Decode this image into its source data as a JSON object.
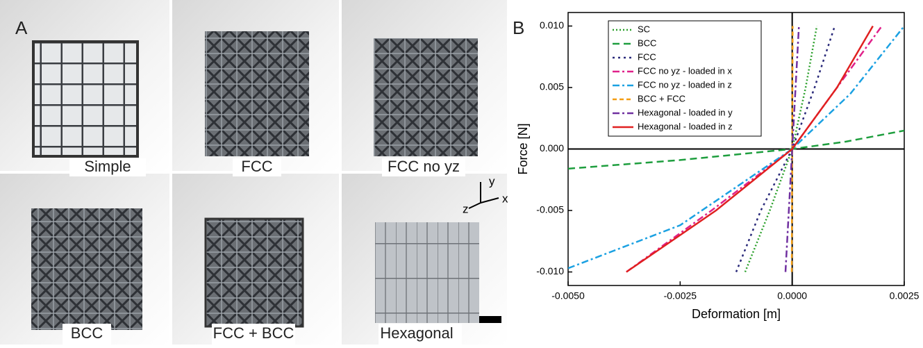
{
  "panel_a": {
    "label": "A",
    "tiles": [
      "Simple",
      "FCC",
      "FCC no yz",
      "BCC",
      "FCC + BCC",
      "Hexagonal"
    ],
    "axes": [
      "y",
      "z",
      "x"
    ]
  },
  "chart_data": {
    "type": "line",
    "panel_label": "B",
    "xlabel": "Deformation [m]",
    "ylabel": "Force [N]",
    "xlim": [
      -0.005,
      0.0025
    ],
    "ylim": [
      -0.0111,
      0.0111
    ],
    "xticks": [
      {
        "value": -0.005,
        "label": "-0.0050"
      },
      {
        "value": -0.0025,
        "label": "-0.0025"
      },
      {
        "value": 0,
        "label": "0.0000"
      },
      {
        "value": 0.0025,
        "label": "0.0025"
      }
    ],
    "yticks": [
      {
        "value": -0.01,
        "label": "-0.010"
      },
      {
        "value": -0.005,
        "label": "-0.005"
      },
      {
        "value": 0,
        "label": "0.000"
      },
      {
        "value": 0.005,
        "label": "0.005"
      },
      {
        "value": 0.01,
        "label": "0.010"
      }
    ],
    "legend": "upper left",
    "series": [
      {
        "name": "SC",
        "color": "#2ca02c",
        "dash": "2 3",
        "x": [
          -0.00105,
          -0.0005,
          0,
          0.0003,
          0.00055
        ],
        "values": [
          -0.01,
          -0.005,
          0,
          0.005,
          0.01
        ]
      },
      {
        "name": "BCC",
        "color": "#1e9e3e",
        "dash": "10 6",
        "x": [
          -0.005,
          -0.0025,
          0,
          0.0012,
          0.0025
        ],
        "values": [
          -0.0016,
          -0.0009,
          0,
          0.0006,
          0.0015
        ]
      },
      {
        "name": "FCC",
        "color": "#2a2a7a",
        "dash": "3 5",
        "x": [
          -0.00125,
          -0.0007,
          0,
          0.0005,
          0.00095
        ],
        "values": [
          -0.01,
          -0.005,
          0,
          0.005,
          0.01
        ]
      },
      {
        "name": "FCC no yz - loaded in x",
        "color": "#e0218a",
        "dash": "10 4 3 4",
        "x": [
          -0.0037,
          -0.0018,
          0,
          0.001,
          0.002
        ],
        "values": [
          -0.01,
          -0.005,
          0,
          0.005,
          0.01
        ]
      },
      {
        "name": "FCC no yz - loaded in z",
        "color": "#1ba1e2",
        "dash": "10 4 3 4",
        "x": [
          -0.005,
          -0.0025,
          0,
          0.0013,
          0.0025
        ],
        "values": [
          -0.0097,
          -0.0062,
          0,
          0.0045,
          0.01
        ]
      },
      {
        "name": "BCC + FCC",
        "color": "#f39c12",
        "dash": "6 4",
        "x": [
          -1e-05,
          1e-05
        ],
        "values": [
          -0.01,
          0.01
        ]
      },
      {
        "name": "Hexagonal - loaded in y",
        "color": "#7030a0",
        "dash": "10 4 3 4",
        "x": [
          -0.00015,
          0,
          0.00015
        ],
        "values": [
          -0.01,
          0,
          0.01
        ]
      },
      {
        "name": "Hexagonal - loaded in z",
        "color": "#e02020",
        "dash": "",
        "x": [
          -0.0037,
          -0.0017,
          0,
          0.001,
          0.0018
        ],
        "values": [
          -0.01,
          -0.005,
          0,
          0.005,
          0.01
        ]
      }
    ]
  }
}
